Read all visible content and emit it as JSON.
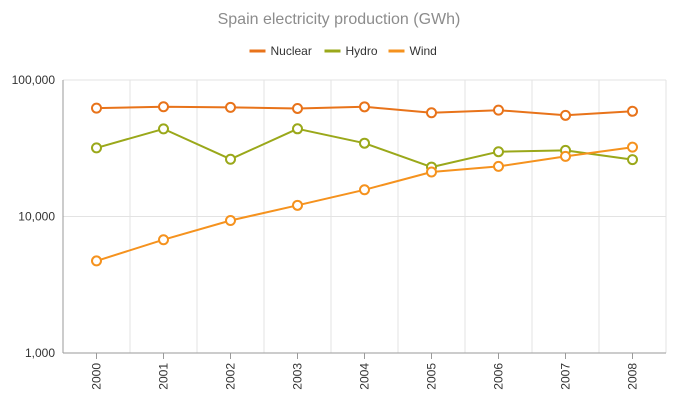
{
  "chart_data": {
    "type": "line",
    "title": "Spain electricity production (GWh)",
    "xlabel": "",
    "ylabel": "",
    "y_scale": "log",
    "ylim": [
      1000,
      100000
    ],
    "y_ticks": [
      1000,
      10000,
      100000
    ],
    "y_tick_labels": [
      "1,000",
      "10,000",
      "100,000"
    ],
    "categories": [
      "2000",
      "2001",
      "2002",
      "2003",
      "2004",
      "2005",
      "2006",
      "2007",
      "2008"
    ],
    "legend_position": "top",
    "grid": true,
    "series": [
      {
        "name": "Nuclear",
        "color": "#e8731a",
        "values": [
          62206,
          63708,
          63016,
          61875,
          63606,
          57539,
          60126,
          55102,
          58973
        ]
      },
      {
        "name": "Hydro",
        "color": "#9aa81a",
        "values": [
          31807,
          43864,
          26270,
          43897,
          34439,
          23023,
          29831,
          30522,
          26112
        ]
      },
      {
        "name": "Wind",
        "color": "#f5921e",
        "values": [
          4727,
          6759,
          9342,
          12075,
          15700,
          21176,
          23297,
          27568,
          32203
        ]
      }
    ]
  }
}
